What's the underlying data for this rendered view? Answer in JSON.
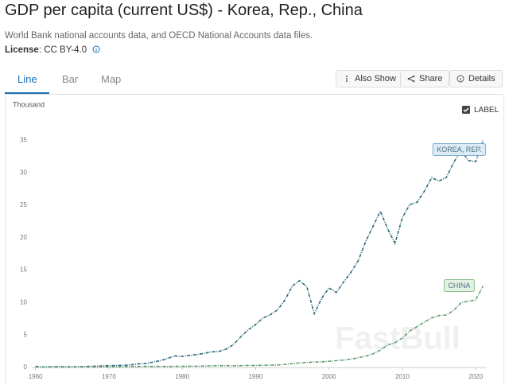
{
  "header": {
    "title": "GDP per capita (current US$) - Korea, Rep., China",
    "subtitle": "World Bank national accounts data, and OECD National Accounts data files.",
    "license_key": "License",
    "license_value": ": CC BY-4.0"
  },
  "tabs": [
    "Line",
    "Bar",
    "Map"
  ],
  "buttons": [
    "Also Show",
    "Share",
    "Details"
  ],
  "label_toggle": "LABEL",
  "watermark": "FastBull",
  "chart_data": {
    "type": "line",
    "ylabel": "Thousand",
    "x": [
      1960,
      1961,
      1962,
      1963,
      1964,
      1965,
      1966,
      1967,
      1968,
      1969,
      1970,
      1971,
      1972,
      1973,
      1974,
      1975,
      1976,
      1977,
      1978,
      1979,
      1980,
      1981,
      1982,
      1983,
      1984,
      1985,
      1986,
      1987,
      1988,
      1989,
      1990,
      1991,
      1992,
      1993,
      1994,
      1995,
      1996,
      1997,
      1998,
      1999,
      2000,
      2001,
      2002,
      2003,
      2004,
      2005,
      2006,
      2007,
      2008,
      2009,
      2010,
      2011,
      2012,
      2013,
      2014,
      2015,
      2016,
      2017,
      2018,
      2019,
      2020,
      2021
    ],
    "series": [
      {
        "name": "KOREA, REP.",
        "color": "#2b6777",
        "label_fill": "#dcebf5",
        "label_stroke": "#7fb0d0",
        "values": [
          0.16,
          0.09,
          0.11,
          0.14,
          0.12,
          0.11,
          0.13,
          0.16,
          0.2,
          0.24,
          0.28,
          0.31,
          0.33,
          0.41,
          0.56,
          0.62,
          0.83,
          1.05,
          1.4,
          1.78,
          1.71,
          1.88,
          1.99,
          2.18,
          2.41,
          2.48,
          2.83,
          3.55,
          4.75,
          5.82,
          6.61,
          7.64,
          8.13,
          8.89,
          10.39,
          12.56,
          13.4,
          12.4,
          8.29,
          10.67,
          12.26,
          11.56,
          13.17,
          14.67,
          16.5,
          19.4,
          21.74,
          24.09,
          21.35,
          19.14,
          23.08,
          25.1,
          25.46,
          27.18,
          29.25,
          28.73,
          29.29,
          31.6,
          33.45,
          31.9,
          31.72,
          35.0
        ]
      },
      {
        "name": "CHINA",
        "color": "#5e9a6e",
        "label_fill": "#e3f1e3",
        "label_stroke": "#8cc08c",
        "values": [
          0.09,
          0.08,
          0.07,
          0.07,
          0.08,
          0.1,
          0.1,
          0.09,
          0.09,
          0.1,
          0.11,
          0.12,
          0.13,
          0.16,
          0.16,
          0.18,
          0.16,
          0.18,
          0.16,
          0.18,
          0.19,
          0.2,
          0.2,
          0.22,
          0.25,
          0.29,
          0.28,
          0.25,
          0.28,
          0.31,
          0.32,
          0.33,
          0.37,
          0.38,
          0.47,
          0.61,
          0.71,
          0.78,
          0.83,
          0.87,
          0.96,
          1.05,
          1.15,
          1.29,
          1.51,
          1.75,
          2.1,
          2.69,
          3.47,
          3.83,
          4.55,
          5.61,
          6.3,
          7.02,
          7.64,
          8.02,
          8.08,
          8.82,
          9.98,
          10.22,
          10.41,
          12.56
        ]
      }
    ],
    "xlim": [
      1959.5,
      2021.5
    ],
    "xticks": [
      1960,
      1970,
      1980,
      1990,
      2000,
      2010,
      2020
    ],
    "ylim": [
      0,
      38
    ],
    "yticks": [
      0,
      5,
      10,
      15,
      20,
      25,
      30,
      35
    ],
    "grid": false
  }
}
